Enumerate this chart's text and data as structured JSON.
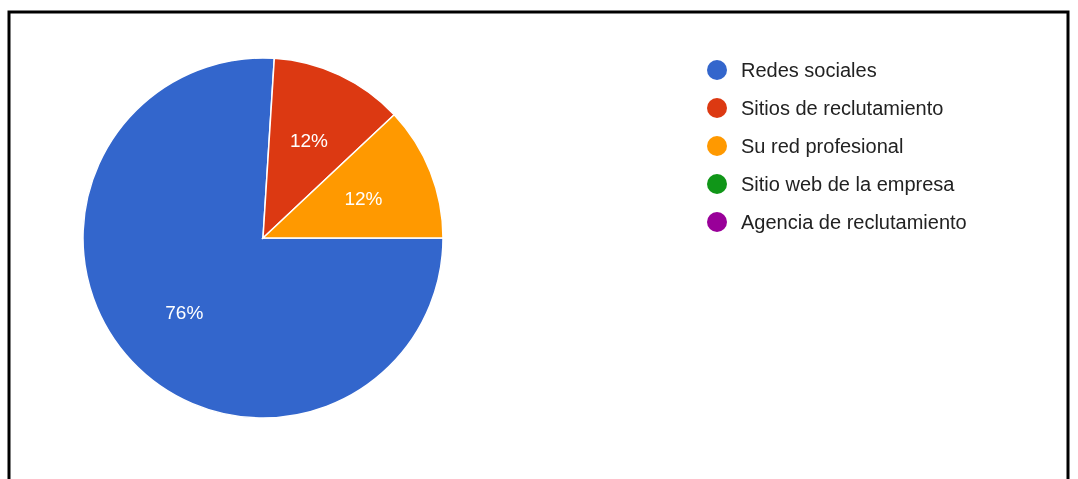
{
  "chart_data": {
    "type": "pie",
    "categories": [
      "Redes sociales",
      "Sitios de reclutamiento",
      "Su red profesional",
      "Sitio web de la empresa",
      "Agencia de reclutamiento"
    ],
    "values": [
      76,
      12,
      12,
      0,
      0
    ],
    "colors": [
      "#3366cc",
      "#dc3912",
      "#ff9900",
      "#109618",
      "#990099"
    ],
    "value_labels": [
      "76%",
      "12%",
      "12%",
      null,
      null
    ],
    "legend": "right"
  }
}
